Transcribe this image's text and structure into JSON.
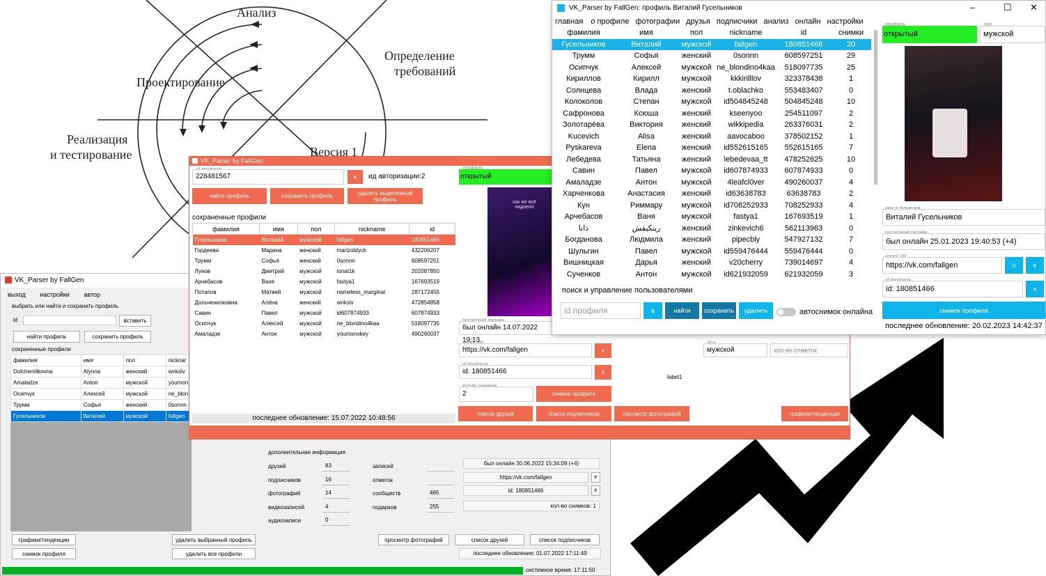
{
  "diagram": {
    "labels": {
      "analysis": "Анализ",
      "requirements_1": "Определение",
      "requirements_2": "требований",
      "design": "Проектирование",
      "implementation_1": "Реализация",
      "implementation_2": "и тестирование",
      "version": "Версия 1"
    }
  },
  "win1": {
    "title": "VK_Parser by FallGen",
    "menu": [
      "выход",
      "настройки",
      "автор"
    ],
    "section_select": "выбрать или найти и сохранить профиль",
    "id_label": "id",
    "id_value": "",
    "paste_button": "вставить",
    "find_button": "найти профиль",
    "save_button": "сохранить профиль",
    "saved_section": "сохраненные профили",
    "columns": [
      "фамилия",
      "имя",
      "пол",
      "nicknar"
    ],
    "rows": [
      [
        "Dolchemilkovna",
        "Alyona",
        "женский",
        "wnkslv"
      ],
      [
        "Amaladze",
        "Anton",
        "мужской",
        "youmon"
      ],
      [
        "Осипчук",
        "Алексей",
        "мужской",
        "ne_blon"
      ],
      [
        "Трумм",
        "Софья",
        "женский",
        "0sonnn"
      ],
      [
        "Гусельников",
        "Виталий",
        "мужской",
        "fallgen"
      ]
    ],
    "selected_row": 4,
    "charts_button": "графики/тенденции",
    "delete_selected_button": "удалить выбранный профиль",
    "snapshot_button": "снимок профиля",
    "delete_all_button": "удалить все профили",
    "info_section": "дополнительная информация",
    "stats_left": [
      {
        "label": "друзей",
        "value": "83"
      },
      {
        "label": "подписчиков",
        "value": "16"
      },
      {
        "label": "фотографий",
        "value": "14"
      },
      {
        "label": "видеозаписей",
        "value": "4"
      },
      {
        "label": "аудиозаписи",
        "value": "0"
      }
    ],
    "stats_right": [
      {
        "label": "записей",
        "value": ""
      },
      {
        "label": "отметок",
        "value": ""
      },
      {
        "label": "сообществ",
        "value": "465"
      },
      {
        "label": "подарков",
        "value": "255"
      }
    ],
    "last_online": "был онлайн 30.06.2022 15:34:09 (+4)",
    "vk_url": "https://vk.com/fallgen",
    "vk_id": "id: 180851466",
    "copy_label": "к",
    "snapshot_count": "кол-во снимков: 1",
    "view_photos_button": "просмотр фотографий",
    "friends_list_button": "список друзей",
    "subscribers_list_button": "список подписчиков",
    "last_update": "последнее обновление: 01.07.2022 17:11:49",
    "system_time": "системное время: 17:11:50",
    "progress": 1.0,
    "progress_color": "#06b025"
  },
  "win2": {
    "title": "VK_Parser by FallGen",
    "id_caption": "id профиля",
    "id_value": "228481567",
    "v_button": "в",
    "auth_id": "ид авторизации:2",
    "find_button": "найти профиль",
    "save_button": "сохранить профиль",
    "delete_selected_button": "удалить выделенный профиль",
    "saved_section": "сохраненные профили",
    "columns": [
      "фамилия",
      "имя",
      "пол",
      "nickname",
      "id"
    ],
    "rows": [
      [
        "Гусельников",
        "Виталий",
        "мужской",
        "fallgen",
        "180851466"
      ],
      [
        "Гордеева",
        "Марина",
        "женский",
        "marizoldyck",
        "432206207"
      ],
      [
        "Трумм",
        "Софья",
        "женский",
        "0sonnn",
        "608597251"
      ],
      [
        "Лунов",
        "Дмитрий",
        "мужской",
        "lonat1k",
        "202087850"
      ],
      [
        "Арчебасов",
        "Ваня",
        "мужской",
        "fastya1",
        "167693519"
      ],
      [
        "Потапов",
        "Матвей",
        "мужской",
        "nameless_marginal",
        "287172455"
      ],
      [
        "Дольченилковна",
        "Алёна",
        "женский",
        "wnkslv",
        "472854858"
      ],
      [
        "Савин",
        "Павел",
        "мужской",
        "id607874933",
        "607874933"
      ],
      [
        "Осипчук",
        "Алексей",
        "мужской",
        "ne_blondino4kaa",
        "518097735"
      ],
      [
        "Амаладзе",
        "Антон",
        "мужской",
        "youmonokey",
        "490260037"
      ]
    ],
    "selected_row": 0,
    "profile_caption": "профиль",
    "profile_status": "открытый",
    "photo_text": "как же всё надоело",
    "last_online_caption": "последний онлайн",
    "last_online": "был онлайн 14.07.2022 19:13",
    "vk_caption": "адрес VK",
    "vk_url": "https://vk.com/fallgen",
    "id_caption2": "id профиля",
    "vk_id": "id: 180851466",
    "k_label": "к",
    "snap_caption": "кол-во снимков",
    "snap_count": "2",
    "snapshot_button": "снимок профиля",
    "friends_button": "список друзей",
    "subscribers_button": "список подписчиков",
    "photos_button": "просмотр фотографий",
    "charts_button": "графики/тенденции",
    "gender_caption": "пол",
    "gender_value": "мужской",
    "marks_placeholder": "кол-во отметок",
    "label1": "label1",
    "last_update": "последнее обновление: 15.07.2022 10:48:56"
  },
  "win3": {
    "title": "VK_Parser by FallGen: профиль Виталий Гусельников",
    "controls": [
      "–",
      "☐",
      "✕"
    ],
    "tabs": [
      "главная",
      "о профиле",
      "фотографии",
      "друзья",
      "подписчики",
      "анализ",
      "онлайн",
      "настройки"
    ],
    "columns": [
      "фамилия",
      "имя",
      "пол",
      "nickname",
      "id",
      "снимки"
    ],
    "rows": [
      [
        "Гусельников",
        "Виталий",
        "мужской",
        "fallgen",
        "180851466",
        "20"
      ],
      [
        "Трумм",
        "Софья",
        "женский",
        "0sonnn",
        "608597251",
        "29"
      ],
      [
        "Осипчук",
        "Алексей",
        "мужской",
        "ne_blondino4kaa",
        "518097735",
        "25"
      ],
      [
        "Кириллов",
        "Кирилл",
        "мужской",
        "kkkirilllov",
        "323378438",
        "1"
      ],
      [
        "Солнцева",
        "Влада",
        "женский",
        "t.oblachko",
        "553483407",
        "0"
      ],
      [
        "Колоколов",
        "Степан",
        "мужской",
        "id504845248",
        "504845248",
        "10"
      ],
      [
        "Сафронова",
        "Ксюша",
        "женский",
        "kseenyoo",
        "254511097",
        "2"
      ],
      [
        "Золотарёва",
        "Виктория",
        "женский",
        "wikkipedia",
        "263376031",
        "2"
      ],
      [
        "Kucevich",
        "Alisa",
        "женский",
        "aavocaboo",
        "378502152",
        "1"
      ],
      [
        "Pyskareva",
        "Elena",
        "женский",
        "id552615165",
        "552615165",
        "7"
      ],
      [
        "Лебедева",
        "Татьяна",
        "женский",
        "lebedevaa_tt",
        "478252625",
        "10"
      ],
      [
        "Савин",
        "Павел",
        "мужской",
        "id607874933",
        "607874933",
        "0"
      ],
      [
        "Амаладзе",
        "Антон",
        "мужской",
        "4leafcl0ver",
        "490260037",
        "4"
      ],
      [
        "Харченкова",
        "Анастасия",
        "женский",
        "id63638783",
        "63638783",
        "2"
      ],
      [
        "Кун",
        "Риммару",
        "мужской",
        "id708252933",
        "708252933",
        "4"
      ],
      [
        "Арчебасов",
        "Ваня",
        "мужской",
        "fastya1",
        "167693519",
        "1"
      ],
      [
        "دانا",
        "زينكيفش",
        "женский",
        "zinkevich6",
        "562113963",
        "0"
      ],
      [
        "Богданова",
        "Людмила",
        "женский",
        "pipecbly",
        "547927132",
        "7"
      ],
      [
        "Шульгин",
        "Павел",
        "мужской",
        "id559476444",
        "559476444",
        "0"
      ],
      [
        "Вишницкая",
        "Дарья",
        "женский",
        "v20cherry",
        "739014697",
        "4"
      ],
      [
        "Сученков",
        "Антон",
        "мужской",
        "id621932059",
        "621932059",
        "3"
      ]
    ],
    "selected_row": 0,
    "search_section": "поиск и управление пользователями",
    "search_placeholder": "id профиля",
    "v_button": "в",
    "find_button": "найти",
    "save_button": "сохранить",
    "delete_button": "удалить",
    "auto_snapshot": "автоснимок онлайна",
    "profile_caption": "профиль",
    "profile_status": "открытый",
    "gender_caption": "пол",
    "gender_value": "мужской",
    "name_caption": "имя и фамилия",
    "name_value": "Виталий Гусельников",
    "last_online_caption": "последний онлайн",
    "last_online": "был онлайн 25.01.2023 19:40:53 (+4)",
    "vk_caption": "адрес VK",
    "vk_url": "https://vk.com/fallgen",
    "o_label": "о",
    "k_label": "к",
    "id_caption": "id профиля",
    "vk_id": "id: 180851466",
    "snapshot_button": "снимок профиля",
    "last_update": "последнее обновление: 20.02.2023 14:42:37",
    "accent": "#1ab2e8",
    "status_color": "#22ee22"
  }
}
